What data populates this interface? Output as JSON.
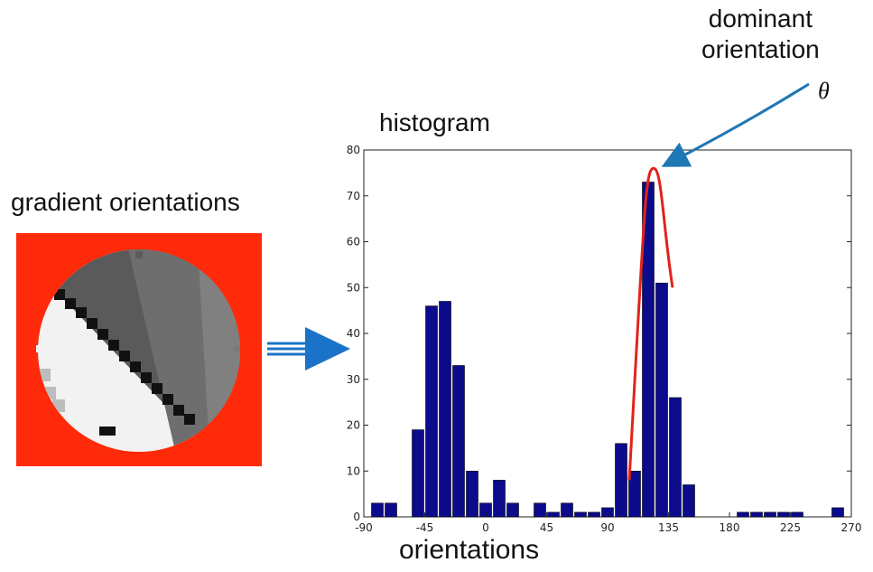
{
  "labels": {
    "gradient_orientations": "gradient orientations",
    "histogram": "histogram",
    "dominant_line1": "dominant",
    "dominant_line2": "orientation",
    "theta": "θ",
    "orientations": "orientations"
  },
  "colors": {
    "bar": "#0b0b8c",
    "peak_curve": "#e2231a",
    "pointer_arrow": "#1f77b4",
    "flow_arrow": "#1a73c9",
    "patch_background": "#ff2a0a"
  },
  "chart_data": {
    "type": "bar",
    "xlabel": "orientations",
    "title": "histogram",
    "xlim": [
      -90,
      270
    ],
    "ylim": [
      0,
      80
    ],
    "xticks": [
      -90,
      -45,
      0,
      45,
      90,
      135,
      180,
      225,
      270
    ],
    "yticks": [
      0,
      10,
      20,
      30,
      40,
      50,
      60,
      70,
      80
    ],
    "bin_width": 10,
    "bins": [
      {
        "center": -80,
        "value": 3
      },
      {
        "center": -70,
        "value": 3
      },
      {
        "center": -50,
        "value": 19
      },
      {
        "center": -40,
        "value": 46
      },
      {
        "center": -30,
        "value": 47
      },
      {
        "center": -20,
        "value": 33
      },
      {
        "center": -10,
        "value": 10
      },
      {
        "center": 0,
        "value": 3
      },
      {
        "center": 10,
        "value": 8
      },
      {
        "center": 20,
        "value": 3
      },
      {
        "center": 40,
        "value": 3
      },
      {
        "center": 50,
        "value": 1
      },
      {
        "center": 60,
        "value": 3
      },
      {
        "center": 70,
        "value": 1
      },
      {
        "center": 80,
        "value": 1
      },
      {
        "center": 90,
        "value": 2
      },
      {
        "center": 100,
        "value": 16
      },
      {
        "center": 110,
        "value": 10
      },
      {
        "center": 120,
        "value": 73
      },
      {
        "center": 130,
        "value": 51
      },
      {
        "center": 140,
        "value": 26
      },
      {
        "center": 150,
        "value": 7
      },
      {
        "center": 190,
        "value": 1
      },
      {
        "center": 200,
        "value": 1
      },
      {
        "center": 210,
        "value": 1
      },
      {
        "center": 220,
        "value": 1
      },
      {
        "center": 230,
        "value": 1
      },
      {
        "center": 260,
        "value": 2
      }
    ],
    "dominant_peak": {
      "x": 124,
      "y": 76
    }
  }
}
